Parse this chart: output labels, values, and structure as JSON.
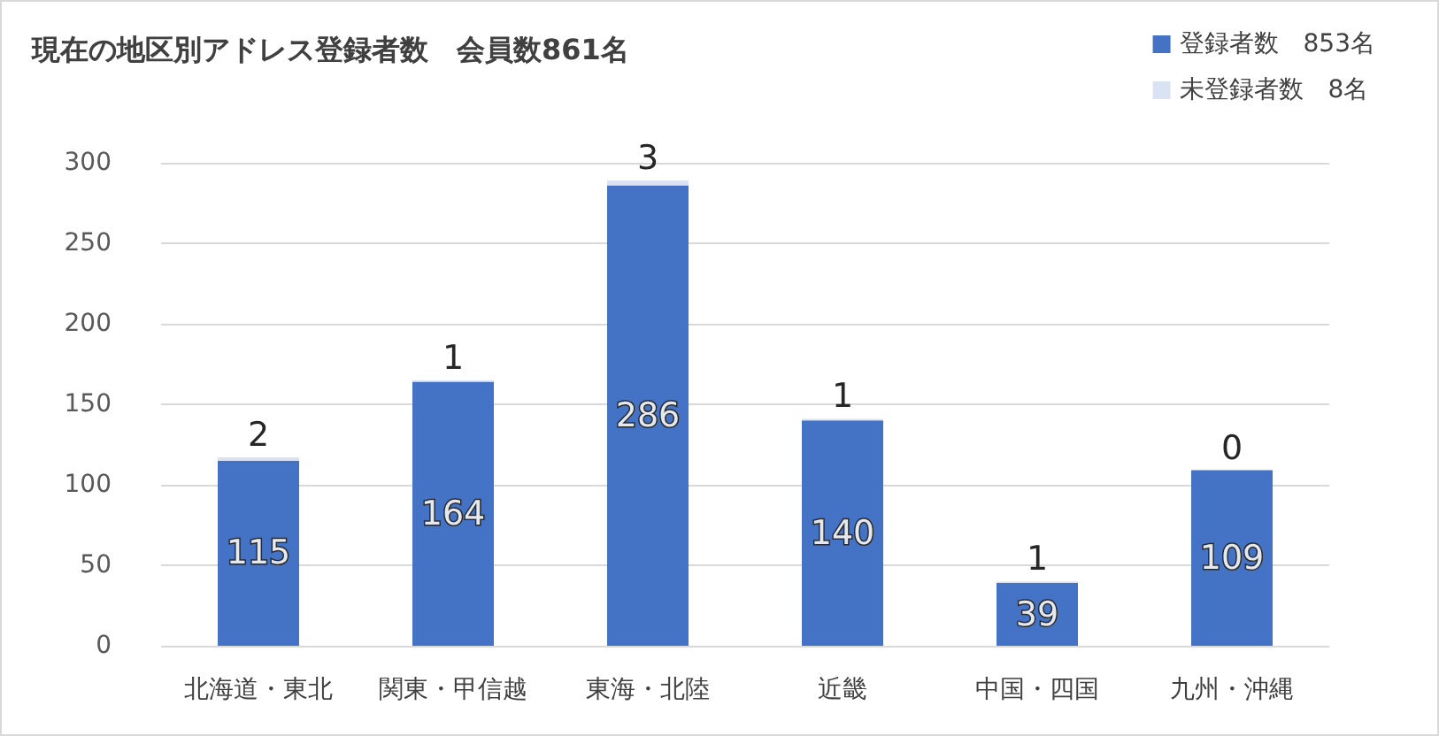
{
  "chart_data": {
    "type": "bar",
    "title": "現在の地区別アドレス登録者数　会員数861名",
    "categories": [
      "北海道・東北",
      "関東・甲信越",
      "東海・北陸",
      "近畿",
      "中国・四国",
      "九州・沖縄"
    ],
    "series": [
      {
        "name": "登録者数　853名",
        "color": "#4472c4",
        "values": [
          115,
          164,
          286,
          140,
          39,
          109
        ]
      },
      {
        "name": "未登録者数　8名",
        "color": "#dae3f3",
        "values": [
          2,
          1,
          3,
          1,
          1,
          0
        ]
      }
    ],
    "stacked": true,
    "ylim": [
      0,
      300
    ],
    "yticks": [
      0,
      50,
      100,
      150,
      200,
      250,
      300
    ],
    "grid": "y",
    "legend": "top right",
    "data_labels": true
  }
}
